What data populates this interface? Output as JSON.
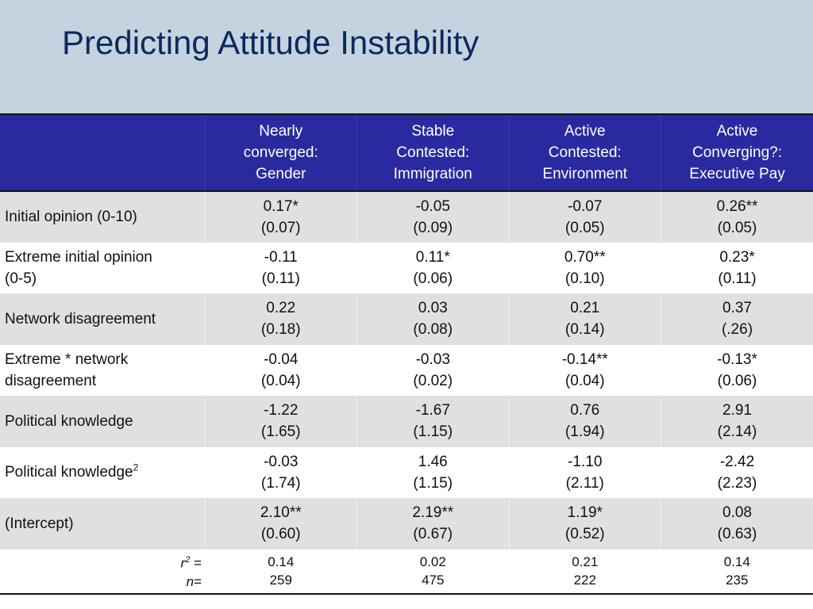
{
  "title": "Predicting Attitude Instability",
  "columns": [
    [
      "Nearly",
      "converged:",
      "Gender"
    ],
    [
      "Stable",
      "Contested:",
      "Immigration"
    ],
    [
      "Active",
      "Contested:",
      "Environment"
    ],
    [
      "Active",
      "Converging?:",
      "Executive Pay"
    ]
  ],
  "rows": [
    {
      "label": [
        "Initial opinion (0-10)"
      ],
      "cells": [
        [
          "0.17*",
          "(0.07)"
        ],
        [
          "-0.05",
          "(0.09)"
        ],
        [
          "-0.07",
          "(0.05)"
        ],
        [
          "0.26**",
          "(0.05)"
        ]
      ]
    },
    {
      "label": [
        "Extreme initial opinion",
        "(0-5)"
      ],
      "cells": [
        [
          "-0.11",
          "(0.11)"
        ],
        [
          "0.11*",
          "(0.06)"
        ],
        [
          "0.70**",
          "(0.10)"
        ],
        [
          "0.23*",
          "(0.11)"
        ]
      ]
    },
    {
      "label": [
        "Network disagreement"
      ],
      "cells": [
        [
          "0.22",
          "(0.18)"
        ],
        [
          "0.03",
          "(0.08)"
        ],
        [
          "0.21",
          "(0.14)"
        ],
        [
          "0.37",
          "(.26)"
        ]
      ]
    },
    {
      "label": [
        "Extreme * network",
        "disagreement"
      ],
      "cells": [
        [
          "-0.04",
          "(0.04)"
        ],
        [
          "-0.03",
          "(0.02)"
        ],
        [
          "-0.14**",
          "(0.04)"
        ],
        [
          "-0.13*",
          "(0.06)"
        ]
      ]
    },
    {
      "label": [
        "Political knowledge"
      ],
      "cells": [
        [
          "-1.22",
          "(1.65)"
        ],
        [
          "-1.67",
          "(1.15)"
        ],
        [
          "0.76",
          "(1.94)"
        ],
        [
          "2.91",
          "(2.14)"
        ]
      ]
    },
    {
      "label": [
        "Political knowledge"
      ],
      "label_sup": "2",
      "cells": [
        [
          "-0.03",
          "(1.74)"
        ],
        [
          "1.46",
          "(1.15)"
        ],
        [
          "-1.10",
          "(2.11)"
        ],
        [
          "-2.42",
          "(2.23)"
        ]
      ]
    },
    {
      "label": [
        "(Intercept)"
      ],
      "cells": [
        [
          "2.10**",
          "(0.60)"
        ],
        [
          "2.19**",
          "(0.67)"
        ],
        [
          "1.19*",
          "(0.52)"
        ],
        [
          "0.08",
          "(0.63)"
        ]
      ]
    }
  ],
  "stats": {
    "r2_label": "r",
    "r2_sup": "2",
    "r2_suffix": " =",
    "n_label": "n",
    "n_suffix": "=",
    "r2": [
      "0.14",
      "0.02",
      "0.21",
      "0.14"
    ],
    "n": [
      "259",
      "475",
      "222",
      "235"
    ]
  }
}
